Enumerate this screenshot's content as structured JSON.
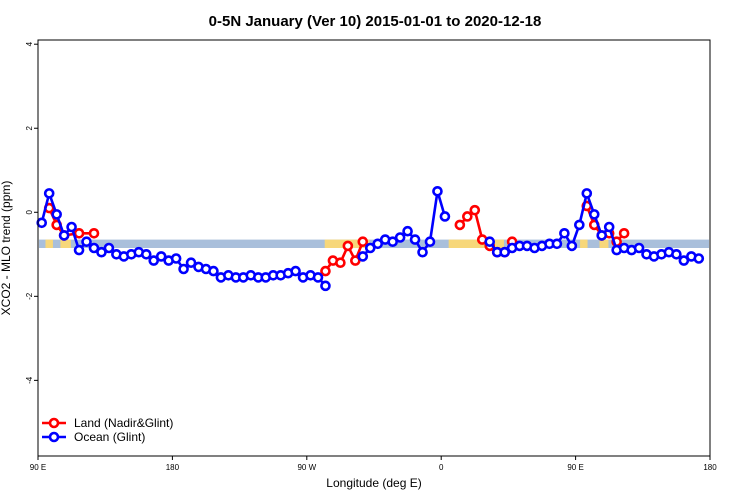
{
  "chart_data": {
    "type": "line",
    "title": "0-5N January (Ver 10)   2015-01-01 to 2020-12-18",
    "xlabel": "Longitude (deg E)",
    "ylabel": "XCO2 - MLO trend (ppm)",
    "xlim": [
      90,
      540
    ],
    "ylim": [
      -5.8,
      4.1
    ],
    "x_ticks": [
      {
        "value": 90,
        "label": "90 E"
      },
      {
        "value": 180,
        "label": "180"
      },
      {
        "value": 270,
        "label": "90 W"
      },
      {
        "value": 360,
        "label": "0"
      },
      {
        "value": 450,
        "label": "90 E"
      },
      {
        "value": 540,
        "label": "180"
      }
    ],
    "y_ticks": [
      {
        "value": -4,
        "label": "-4"
      },
      {
        "value": -2,
        "label": "-2"
      },
      {
        "value": 0,
        "label": "0"
      },
      {
        "value": 2,
        "label": "2"
      },
      {
        "value": 4,
        "label": "4"
      }
    ],
    "surface_band": {
      "y_range": [
        -0.85,
        -0.65
      ],
      "ocean_color": "#a9bfdb",
      "land_color": "#f7d77a",
      "land_segments": [
        [
          95,
          100
        ],
        [
          105,
          112
        ],
        [
          282,
          312
        ],
        [
          365,
          402
        ],
        [
          453,
          458
        ],
        [
          466,
          472
        ]
      ]
    },
    "series": [
      {
        "name": "Land (Nadir&Glint)",
        "color": "#ff0000",
        "segments": [
          [
            [
              97.5,
              0.1
            ],
            [
              102.5,
              -0.3
            ],
            [
              107.5,
              -0.55
            ],
            [
              117.5,
              -0.5
            ],
            [
              127.5,
              -0.5
            ]
          ],
          [
            [
              282.5,
              -1.4
            ],
            [
              287.5,
              -1.15
            ],
            [
              292.5,
              -1.2
            ],
            [
              297.5,
              -0.8
            ],
            [
              302.5,
              -1.15
            ],
            [
              307.5,
              -0.7
            ]
          ],
          [
            [
              372.5,
              -0.3
            ],
            [
              377.5,
              -0.1
            ],
            [
              382.5,
              0.05
            ],
            [
              387.5,
              -0.65
            ],
            [
              392.5,
              -0.8
            ],
            [
              397.5,
              -0.95
            ],
            [
              402.5,
              -0.95
            ],
            [
              407.5,
              -0.7
            ]
          ],
          [
            [
              457.5,
              0.15
            ],
            [
              462.5,
              -0.3
            ],
            [
              467.5,
              -0.55
            ],
            [
              472.5,
              -0.5
            ],
            [
              477.5,
              -0.7
            ],
            [
              482.5,
              -0.5
            ]
          ]
        ]
      },
      {
        "name": "Ocean (Glint)",
        "color": "#0000ff",
        "segments": [
          [
            [
              92.5,
              -0.25
            ],
            [
              97.5,
              0.45
            ],
            [
              102.5,
              -0.05
            ],
            [
              107.5,
              -0.55
            ],
            [
              112.5,
              -0.35
            ],
            [
              117.5,
              -0.9
            ],
            [
              122.5,
              -0.7
            ],
            [
              127.5,
              -0.85
            ],
            [
              132.5,
              -0.95
            ],
            [
              137.5,
              -0.85
            ],
            [
              142.5,
              -1.0
            ],
            [
              147.5,
              -1.05
            ],
            [
              152.5,
              -1.0
            ],
            [
              157.5,
              -0.95
            ],
            [
              162.5,
              -1.0
            ],
            [
              167.5,
              -1.15
            ],
            [
              172.5,
              -1.05
            ],
            [
              177.5,
              -1.15
            ],
            [
              182.5,
              -1.1
            ],
            [
              187.5,
              -1.35
            ],
            [
              192.5,
              -1.2
            ],
            [
              197.5,
              -1.3
            ],
            [
              202.5,
              -1.35
            ],
            [
              207.5,
              -1.4
            ],
            [
              212.5,
              -1.55
            ],
            [
              217.5,
              -1.5
            ],
            [
              222.5,
              -1.55
            ],
            [
              227.5,
              -1.55
            ],
            [
              232.5,
              -1.5
            ],
            [
              237.5,
              -1.55
            ],
            [
              242.5,
              -1.55
            ],
            [
              247.5,
              -1.5
            ],
            [
              252.5,
              -1.5
            ],
            [
              257.5,
              -1.45
            ],
            [
              262.5,
              -1.4
            ],
            [
              267.5,
              -1.55
            ],
            [
              272.5,
              -1.5
            ],
            [
              277.5,
              -1.55
            ],
            [
              282.5,
              -1.75
            ]
          ],
          [
            [
              307.5,
              -1.05
            ],
            [
              312.5,
              -0.85
            ],
            [
              317.5,
              -0.75
            ],
            [
              322.5,
              -0.65
            ],
            [
              327.5,
              -0.7
            ],
            [
              332.5,
              -0.6
            ],
            [
              337.5,
              -0.45
            ],
            [
              342.5,
              -0.65
            ],
            [
              347.5,
              -0.95
            ],
            [
              352.5,
              -0.7
            ],
            [
              357.5,
              0.5
            ],
            [
              362.5,
              -0.1
            ]
          ],
          [
            [
              392.5,
              -0.7
            ],
            [
              397.5,
              -0.95
            ],
            [
              402.5,
              -0.95
            ],
            [
              407.5,
              -0.85
            ],
            [
              412.5,
              -0.8
            ],
            [
              417.5,
              -0.8
            ],
            [
              422.5,
              -0.85
            ],
            [
              427.5,
              -0.8
            ],
            [
              432.5,
              -0.75
            ],
            [
              437.5,
              -0.75
            ],
            [
              442.5,
              -0.5
            ],
            [
              447.5,
              -0.8
            ],
            [
              452.5,
              -0.3
            ],
            [
              457.5,
              0.45
            ],
            [
              462.5,
              -0.05
            ],
            [
              467.5,
              -0.55
            ],
            [
              472.5,
              -0.35
            ],
            [
              477.5,
              -0.9
            ],
            [
              482.5,
              -0.85
            ],
            [
              487.5,
              -0.9
            ],
            [
              492.5,
              -0.85
            ],
            [
              497.5,
              -1.0
            ],
            [
              502.5,
              -1.05
            ],
            [
              507.5,
              -1.0
            ],
            [
              512.5,
              -0.95
            ],
            [
              517.5,
              -1.0
            ],
            [
              522.5,
              -1.15
            ],
            [
              527.5,
              -1.05
            ],
            [
              532.5,
              -1.1
            ]
          ]
        ]
      }
    ],
    "legend_position": "bottom-left"
  }
}
